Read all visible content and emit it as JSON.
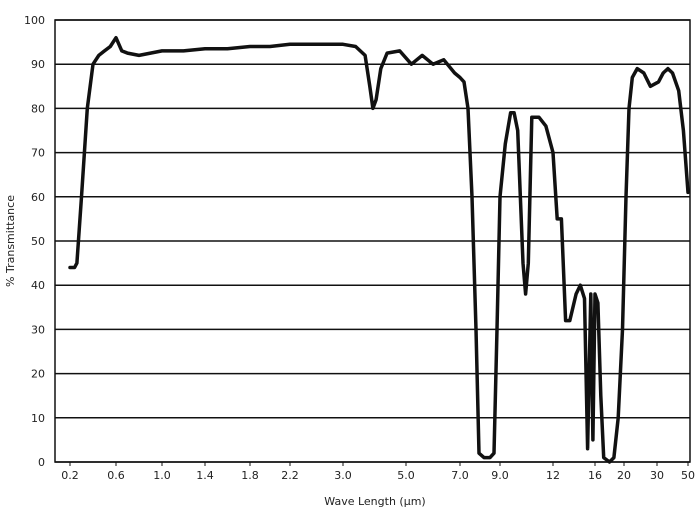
{
  "chart_data": {
    "type": "line",
    "title": "",
    "xlabel": "Wave Length (μm)",
    "ylabel": "% Transmittance",
    "ylim": [
      0,
      100
    ],
    "y_ticks": [
      "0",
      "10",
      "20",
      "30",
      "40",
      "50",
      "60",
      "70",
      "80",
      "90",
      "100"
    ],
    "x_ticks": [
      "0.2",
      "0.6",
      "1.0",
      "1.4",
      "1.8",
      "2.2",
      "3.0",
      "5.0",
      "7.0",
      "9.0",
      "12",
      "16",
      "20",
      "30",
      "50"
    ],
    "grid": "horizontal",
    "line_color": "#111111",
    "series": [
      {
        "values": [
          [
            0.2,
            44
          ],
          [
            0.24,
            44
          ],
          [
            0.26,
            45
          ],
          [
            0.3,
            60
          ],
          [
            0.35,
            80
          ],
          [
            0.4,
            90
          ],
          [
            0.45,
            92
          ],
          [
            0.5,
            93
          ],
          [
            0.55,
            94
          ],
          [
            0.6,
            96
          ],
          [
            0.65,
            93
          ],
          [
            0.7,
            92.5
          ],
          [
            0.8,
            92
          ],
          [
            0.9,
            92.5
          ],
          [
            1.0,
            93
          ],
          [
            1.2,
            93
          ],
          [
            1.4,
            93.5
          ],
          [
            1.6,
            93.5
          ],
          [
            1.8,
            94
          ],
          [
            2.0,
            94
          ],
          [
            2.2,
            94.5
          ],
          [
            2.6,
            94.5
          ],
          [
            3.0,
            94.5
          ],
          [
            3.4,
            94
          ],
          [
            3.7,
            92
          ],
          [
            3.85,
            85
          ],
          [
            3.95,
            80
          ],
          [
            4.05,
            82
          ],
          [
            4.2,
            89
          ],
          [
            4.4,
            92.5
          ],
          [
            4.8,
            93
          ],
          [
            5.2,
            90
          ],
          [
            5.6,
            92
          ],
          [
            6.0,
            90
          ],
          [
            6.4,
            91
          ],
          [
            6.8,
            88
          ],
          [
            7.0,
            87
          ],
          [
            7.2,
            86
          ],
          [
            7.4,
            80
          ],
          [
            7.6,
            60
          ],
          [
            7.8,
            30
          ],
          [
            7.95,
            2
          ],
          [
            8.2,
            1
          ],
          [
            8.5,
            1
          ],
          [
            8.7,
            2
          ],
          [
            8.85,
            30
          ],
          [
            9.0,
            60
          ],
          [
            9.3,
            72
          ],
          [
            9.6,
            79
          ],
          [
            9.8,
            79
          ],
          [
            10.0,
            75
          ],
          [
            10.3,
            45
          ],
          [
            10.45,
            38
          ],
          [
            10.6,
            45
          ],
          [
            10.8,
            78
          ],
          [
            11.2,
            78
          ],
          [
            11.6,
            76
          ],
          [
            12.0,
            70
          ],
          [
            12.4,
            55
          ],
          [
            12.8,
            55
          ],
          [
            13.2,
            32
          ],
          [
            13.6,
            32
          ],
          [
            14.2,
            38
          ],
          [
            14.6,
            40
          ],
          [
            15.0,
            37
          ],
          [
            15.3,
            3
          ],
          [
            15.6,
            38
          ],
          [
            15.8,
            5
          ],
          [
            16.0,
            38
          ],
          [
            16.4,
            36
          ],
          [
            16.8,
            15
          ],
          [
            17.2,
            1
          ],
          [
            18.0,
            0
          ],
          [
            18.6,
            1
          ],
          [
            19.2,
            10
          ],
          [
            19.8,
            30
          ],
          [
            20.6,
            60
          ],
          [
            21.5,
            80
          ],
          [
            22.5,
            87
          ],
          [
            24.0,
            89
          ],
          [
            26.0,
            88
          ],
          [
            28.0,
            85
          ],
          [
            31.0,
            86
          ],
          [
            34.0,
            88
          ],
          [
            37.0,
            89
          ],
          [
            40.0,
            88
          ],
          [
            44.0,
            84
          ],
          [
            47.0,
            75
          ],
          [
            50.0,
            61
          ]
        ]
      }
    ]
  }
}
